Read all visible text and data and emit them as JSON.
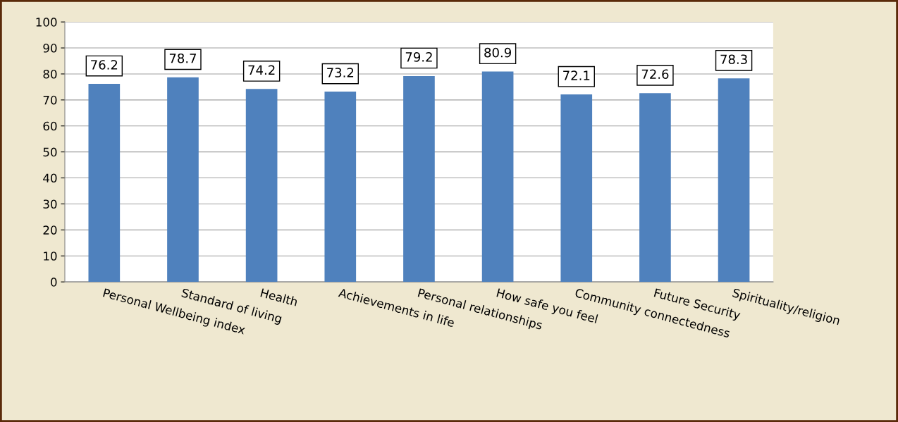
{
  "chart_data": {
    "type": "bar",
    "categories": [
      "Personal Wellbeing index",
      "Standard of living",
      "Health",
      "Achievements in life",
      "Personal relationships",
      "How safe you feel",
      "Community connectedness",
      "Future Security",
      "Spirituality/religion"
    ],
    "values": [
      76.2,
      78.7,
      74.2,
      73.2,
      79.2,
      80.9,
      72.1,
      72.6,
      78.3
    ],
    "color": "#4f81bd",
    "ylim": [
      0,
      100
    ],
    "yticks": [
      0,
      10,
      20,
      30,
      40,
      50,
      60,
      70,
      80,
      90,
      100
    ],
    "grid": "y",
    "data_labels": true,
    "legend": false
  }
}
